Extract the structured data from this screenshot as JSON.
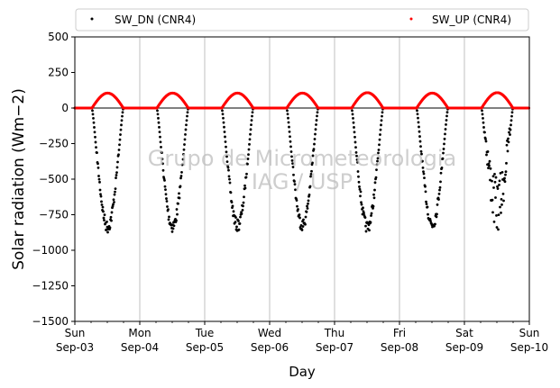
{
  "chart_data": {
    "type": "scatter",
    "xlabel": "Day",
    "ylabel": "Solar radiation (Wm−2)",
    "ylim": [
      -1500,
      500
    ],
    "xlim": [
      "Sun Sep-03",
      "Sun Sep-10"
    ],
    "yticks": [
      500,
      250,
      0,
      -250,
      -500,
      -750,
      -1000,
      -1250,
      -1500
    ],
    "ytick_labels": [
      "500",
      "250",
      "0",
      "−250",
      "−500",
      "−750",
      "−1000",
      "−1250",
      "−1500"
    ],
    "x_day_ticks": [
      {
        "day": "Sun",
        "date": "Sep-03"
      },
      {
        "day": "Mon",
        "date": "Sep-04"
      },
      {
        "day": "Tue",
        "date": "Sep-05"
      },
      {
        "day": "Wed",
        "date": "Sep-06"
      },
      {
        "day": "Thu",
        "date": "Sep-07"
      },
      {
        "day": "Fri",
        "date": "Sep-08"
      },
      {
        "day": "Sat",
        "date": "Sep-09"
      },
      {
        "day": "Sun",
        "date": "Sep-10"
      }
    ],
    "grid": "vertical at day ticks",
    "zero_line": true,
    "legend": {
      "placement": "top, above plot",
      "entries": [
        "SW_DN (CNR4)",
        "SW_UP (CNR4)"
      ]
    },
    "watermark": [
      "Grupo de Micrometeorologia",
      "IAG / USP"
    ],
    "series": [
      {
        "name": "SW_DN (CNR4)",
        "color": "#000000",
        "daily_min": [
          {
            "date": "Sep-03",
            "sunrise": "06:20",
            "sunset": "17:55",
            "min": -880
          },
          {
            "date": "Sep-04",
            "sunrise": "06:20",
            "sunset": "17:55",
            "min": -875
          },
          {
            "date": "Sep-05",
            "sunrise": "06:20",
            "sunset": "17:55",
            "min": -870
          },
          {
            "date": "Sep-06",
            "sunrise": "06:20",
            "sunset": "17:55",
            "min": -865
          },
          {
            "date": "Sep-07",
            "sunrise": "06:20",
            "sunset": "17:55",
            "min": -880
          },
          {
            "date": "Sep-08",
            "sunrise": "06:20",
            "sunset": "17:55",
            "min": -860
          },
          {
            "date": "Sep-09",
            "sunrise": "06:20",
            "sunset": "17:55",
            "min": -880
          }
        ]
      },
      {
        "name": "SW_UP (CNR4)",
        "color": "#ff0000",
        "daily_max": [
          {
            "date": "Sep-03",
            "max": 105
          },
          {
            "date": "Sep-04",
            "max": 105
          },
          {
            "date": "Sep-05",
            "max": 105
          },
          {
            "date": "Sep-06",
            "max": 105
          },
          {
            "date": "Sep-07",
            "max": 108
          },
          {
            "date": "Sep-08",
            "max": 105
          },
          {
            "date": "Sep-09",
            "max": 108
          }
        ]
      }
    ]
  }
}
